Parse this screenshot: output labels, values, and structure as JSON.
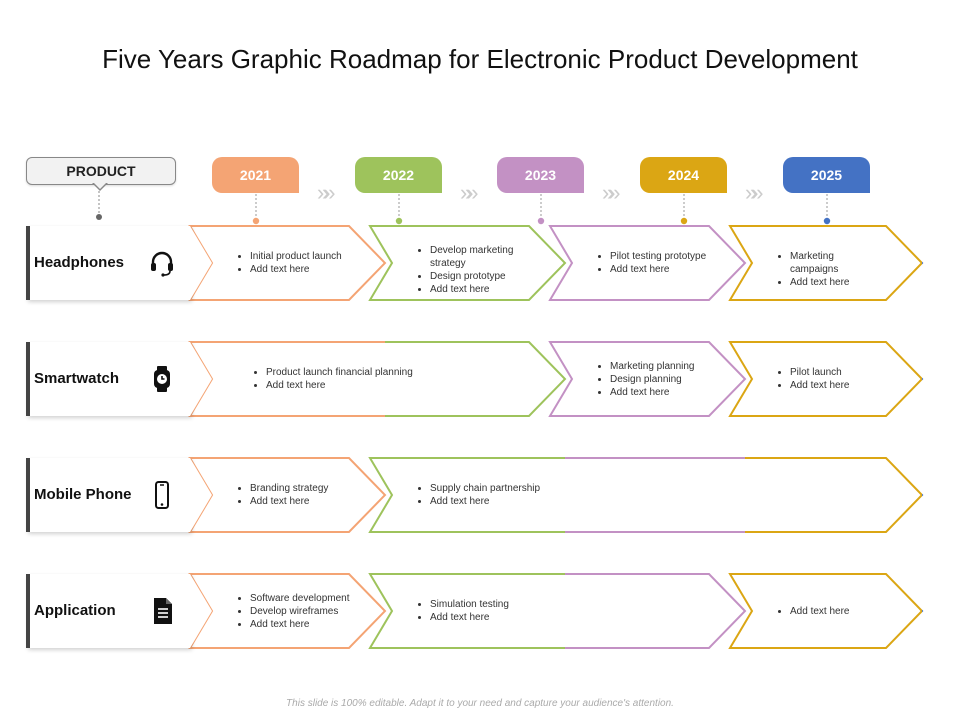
{
  "title": "Five Years Graphic Roadmap for Electronic Product Development",
  "product_label": "PRODUCT",
  "years": [
    {
      "label": "2021",
      "color": "#f4a474"
    },
    {
      "label": "2022",
      "color": "#9ec35c"
    },
    {
      "label": "2023",
      "color": "#c391c4"
    },
    {
      "label": "2024",
      "color": "#dba614"
    },
    {
      "label": "2025",
      "color": "#4472c4"
    }
  ],
  "rows": [
    {
      "label": "Headphones",
      "icon": "headset-icon",
      "items": [
        {
          "start": 0,
          "end": 0,
          "bullets": [
            "Initial product launch",
            "Add text here"
          ]
        },
        {
          "start": 1,
          "end": 1,
          "bullets": [
            "Develop marketing strategy",
            "Design prototype",
            "Add text here"
          ]
        },
        {
          "start": 2,
          "end": 2,
          "bullets": [
            "Pilot testing prototype",
            "Add text here"
          ]
        },
        {
          "start": 3,
          "end": 4,
          "bullets": [
            "Marketing campaigns",
            "Add text here"
          ]
        }
      ]
    },
    {
      "label": "Smartwatch",
      "icon": "smartwatch-icon",
      "items": [
        {
          "start": 0,
          "end": 1,
          "bullets": [
            "Product launch financial planning",
            "Add text here"
          ]
        },
        {
          "start": 2,
          "end": 2,
          "bullets": [
            "Marketing planning",
            "Design planning",
            "Add text here"
          ]
        },
        {
          "start": 3,
          "end": 4,
          "bullets": [
            "Pilot launch",
            "Add text here"
          ]
        }
      ]
    },
    {
      "label": "Mobile Phone",
      "icon": "mobile-phone-icon",
      "items": [
        {
          "start": 0,
          "end": 0,
          "bullets": [
            "Branding strategy",
            "Add text here"
          ]
        },
        {
          "start": 1,
          "end": 4,
          "bullets": [
            "Supply chain partnership",
            "Add text here"
          ]
        }
      ]
    },
    {
      "label": "Application",
      "icon": "document-icon",
      "items": [
        {
          "start": 0,
          "end": 0,
          "bullets": [
            "Software development",
            "Develop wireframes",
            "Add text here"
          ]
        },
        {
          "start": 1,
          "end": 2,
          "bullets": [
            "Simulation testing",
            "Add text here"
          ]
        },
        {
          "start": 3,
          "end": 4,
          "bullets": [
            "Add text here"
          ]
        }
      ]
    }
  ],
  "footer": "This slide is 100% editable. Adapt it to your need and capture your audience's attention."
}
